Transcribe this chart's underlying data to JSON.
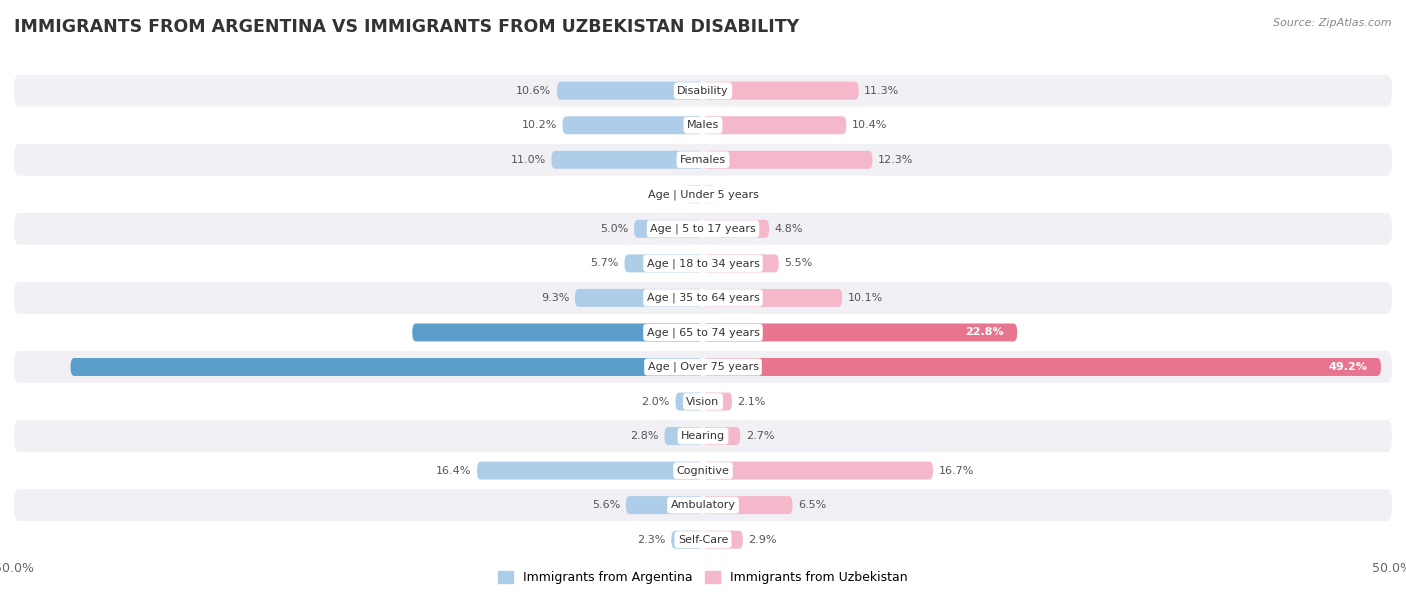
{
  "title": "IMMIGRANTS FROM ARGENTINA VS IMMIGRANTS FROM UZBEKISTAN DISABILITY",
  "source": "Source: ZipAtlas.com",
  "categories": [
    "Disability",
    "Males",
    "Females",
    "Age | Under 5 years",
    "Age | 5 to 17 years",
    "Age | 18 to 34 years",
    "Age | 35 to 64 years",
    "Age | 65 to 74 years",
    "Age | Over 75 years",
    "Vision",
    "Hearing",
    "Cognitive",
    "Ambulatory",
    "Self-Care"
  ],
  "argentina_values": [
    10.6,
    10.2,
    11.0,
    1.2,
    5.0,
    5.7,
    9.3,
    21.1,
    45.9,
    2.0,
    2.8,
    16.4,
    5.6,
    2.3
  ],
  "uzbekistan_values": [
    11.3,
    10.4,
    12.3,
    0.85,
    4.8,
    5.5,
    10.1,
    22.8,
    49.2,
    2.1,
    2.7,
    16.7,
    6.5,
    2.9
  ],
  "argentina_label": "Immigrants from Argentina",
  "uzbekistan_label": "Immigrants from Uzbekistan",
  "argentina_color_light": "#aecde8",
  "argentina_color_dark": "#5b9ec9",
  "uzbekistan_color_light": "#f5b8cb",
  "uzbekistan_color_dark": "#e8758f",
  "x_max": 50.0,
  "background_color": "#ffffff",
  "row_color_odd": "#f0f0f5",
  "row_color_even": "#ffffff",
  "bar_height": 0.52,
  "title_fontsize": 12.5,
  "label_fontsize": 8.0,
  "value_fontsize": 8.0,
  "legend_fontsize": 9.0
}
